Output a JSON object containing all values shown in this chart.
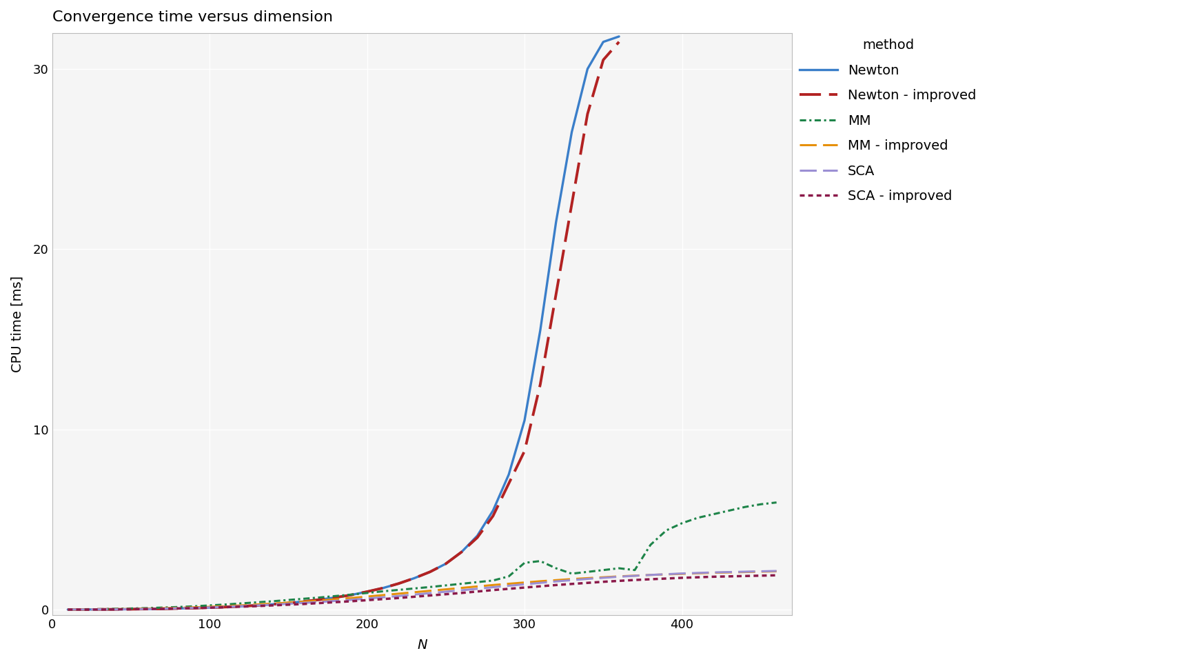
{
  "title": "Convergence time versus dimension",
  "xlabel": "N",
  "ylabel": "CPU time [ms]",
  "xlim": [
    0,
    470
  ],
  "ylim": [
    -0.3,
    32
  ],
  "yticks": [
    0,
    10,
    20,
    30
  ],
  "xticks": [
    0,
    100,
    200,
    300,
    400
  ],
  "background_color": "#ffffff",
  "panel_background": "#f5f5f5",
  "grid_color": "#ffffff",
  "series": [
    {
      "label": "Newton",
      "color": "#3a7ec9",
      "linestyle": "solid",
      "linewidth": 2.4,
      "x": [
        10,
        20,
        30,
        40,
        50,
        60,
        70,
        80,
        90,
        100,
        110,
        120,
        130,
        140,
        150,
        160,
        170,
        180,
        190,
        200,
        210,
        220,
        230,
        240,
        250,
        260,
        270,
        280,
        290,
        300,
        310,
        320,
        330,
        340,
        350,
        360
      ],
      "y": [
        0.01,
        0.01,
        0.02,
        0.02,
        0.03,
        0.04,
        0.05,
        0.07,
        0.09,
        0.12,
        0.15,
        0.19,
        0.24,
        0.3,
        0.37,
        0.46,
        0.56,
        0.68,
        0.82,
        1.0,
        1.2,
        1.45,
        1.75,
        2.1,
        2.55,
        3.2,
        4.1,
        5.5,
        7.5,
        10.5,
        15.5,
        21.5,
        26.5,
        30.0,
        31.5,
        31.8
      ]
    },
    {
      "label": "Newton - improved",
      "color": "#b22222",
      "linestyle": "dashed",
      "linewidth": 2.8,
      "x": [
        10,
        20,
        30,
        40,
        50,
        60,
        70,
        80,
        90,
        100,
        110,
        120,
        130,
        140,
        150,
        160,
        170,
        180,
        190,
        200,
        210,
        220,
        230,
        240,
        250,
        260,
        270,
        280,
        290,
        300,
        310,
        320,
        330,
        340,
        350,
        360
      ],
      "y": [
        0.01,
        0.01,
        0.02,
        0.02,
        0.03,
        0.04,
        0.05,
        0.07,
        0.09,
        0.12,
        0.15,
        0.19,
        0.24,
        0.3,
        0.37,
        0.46,
        0.56,
        0.68,
        0.82,
        1.0,
        1.2,
        1.45,
        1.75,
        2.1,
        2.55,
        3.2,
        4.0,
        5.2,
        7.0,
        8.8,
        12.5,
        17.5,
        22.5,
        27.5,
        30.5,
        31.5
      ]
    },
    {
      "label": "MM",
      "color": "#1e8449",
      "linestyle": "dashdot",
      "linewidth": 2.2,
      "x": [
        10,
        20,
        30,
        40,
        50,
        60,
        70,
        80,
        90,
        100,
        110,
        120,
        130,
        140,
        150,
        160,
        170,
        180,
        190,
        200,
        210,
        220,
        230,
        240,
        250,
        260,
        270,
        280,
        290,
        300,
        310,
        320,
        330,
        340,
        350,
        360,
        370,
        380,
        390,
        400,
        410,
        420,
        430,
        440,
        450,
        460
      ],
      "y": [
        0.01,
        0.02,
        0.03,
        0.05,
        0.07,
        0.09,
        0.12,
        0.15,
        0.19,
        0.24,
        0.29,
        0.35,
        0.41,
        0.47,
        0.54,
        0.61,
        0.68,
        0.76,
        0.84,
        0.93,
        1.02,
        1.1,
        1.18,
        1.26,
        1.35,
        1.44,
        1.53,
        1.62,
        1.85,
        2.6,
        2.7,
        2.3,
        2.0,
        2.1,
        2.2,
        2.3,
        2.2,
        3.6,
        4.4,
        4.8,
        5.1,
        5.3,
        5.5,
        5.7,
        5.85,
        5.95
      ]
    },
    {
      "label": "MM - improved",
      "color": "#e6900a",
      "linestyle": "dashed",
      "linewidth": 2.2,
      "x": [
        10,
        20,
        30,
        40,
        50,
        60,
        70,
        80,
        90,
        100,
        110,
        120,
        130,
        140,
        150,
        160,
        170,
        180,
        190,
        200,
        210,
        220,
        230,
        240,
        250,
        260,
        270,
        280,
        290,
        300,
        310,
        320,
        330,
        340,
        350,
        360,
        370,
        380,
        390,
        400,
        410,
        420,
        430,
        440,
        450,
        460
      ],
      "y": [
        0.01,
        0.01,
        0.02,
        0.03,
        0.04,
        0.06,
        0.08,
        0.1,
        0.13,
        0.16,
        0.2,
        0.24,
        0.29,
        0.34,
        0.39,
        0.45,
        0.51,
        0.58,
        0.65,
        0.73,
        0.81,
        0.89,
        0.97,
        1.05,
        1.13,
        1.21,
        1.29,
        1.37,
        1.44,
        1.51,
        1.58,
        1.64,
        1.7,
        1.75,
        1.8,
        1.85,
        1.89,
        1.93,
        1.96,
        1.99,
        2.02,
        2.05,
        2.07,
        2.09,
        2.11,
        2.13
      ]
    },
    {
      "label": "SCA",
      "color": "#9b8fd4",
      "linestyle": "dashed",
      "linewidth": 2.2,
      "x": [
        10,
        20,
        30,
        40,
        50,
        60,
        70,
        80,
        90,
        100,
        110,
        120,
        130,
        140,
        150,
        160,
        170,
        180,
        190,
        200,
        210,
        220,
        230,
        240,
        250,
        260,
        270,
        280,
        290,
        300,
        310,
        320,
        330,
        340,
        350,
        360,
        370,
        380,
        390,
        400,
        410,
        420,
        430,
        440,
        450,
        460
      ],
      "y": [
        0.01,
        0.01,
        0.02,
        0.02,
        0.03,
        0.04,
        0.06,
        0.08,
        0.1,
        0.13,
        0.16,
        0.2,
        0.24,
        0.28,
        0.33,
        0.38,
        0.43,
        0.49,
        0.55,
        0.62,
        0.69,
        0.76,
        0.84,
        0.92,
        1.0,
        1.08,
        1.16,
        1.25,
        1.33,
        1.41,
        1.49,
        1.57,
        1.64,
        1.71,
        1.77,
        1.83,
        1.88,
        1.93,
        1.97,
        2.01,
        2.04,
        2.07,
        2.09,
        2.11,
        2.13,
        2.15
      ]
    },
    {
      "label": "SCA - improved",
      "color": "#8b1a4a",
      "linestyle": "dotted",
      "linewidth": 2.5,
      "x": [
        10,
        20,
        30,
        40,
        50,
        60,
        70,
        80,
        90,
        100,
        110,
        120,
        130,
        140,
        150,
        160,
        170,
        180,
        190,
        200,
        210,
        220,
        230,
        240,
        250,
        260,
        270,
        280,
        290,
        300,
        310,
        320,
        330,
        340,
        350,
        360,
        370,
        380,
        390,
        400,
        410,
        420,
        430,
        440,
        450,
        460
      ],
      "y": [
        0.01,
        0.01,
        0.01,
        0.02,
        0.03,
        0.04,
        0.05,
        0.07,
        0.09,
        0.11,
        0.14,
        0.17,
        0.2,
        0.24,
        0.28,
        0.32,
        0.37,
        0.42,
        0.47,
        0.53,
        0.59,
        0.65,
        0.72,
        0.79,
        0.86,
        0.93,
        1.01,
        1.09,
        1.16,
        1.23,
        1.3,
        1.37,
        1.43,
        1.49,
        1.55,
        1.6,
        1.65,
        1.69,
        1.73,
        1.77,
        1.8,
        1.83,
        1.85,
        1.87,
        1.89,
        1.91
      ]
    }
  ],
  "legend_title": "method",
  "legend_fontsize": 14,
  "title_fontsize": 16,
  "axis_label_fontsize": 14,
  "tick_fontsize": 13
}
